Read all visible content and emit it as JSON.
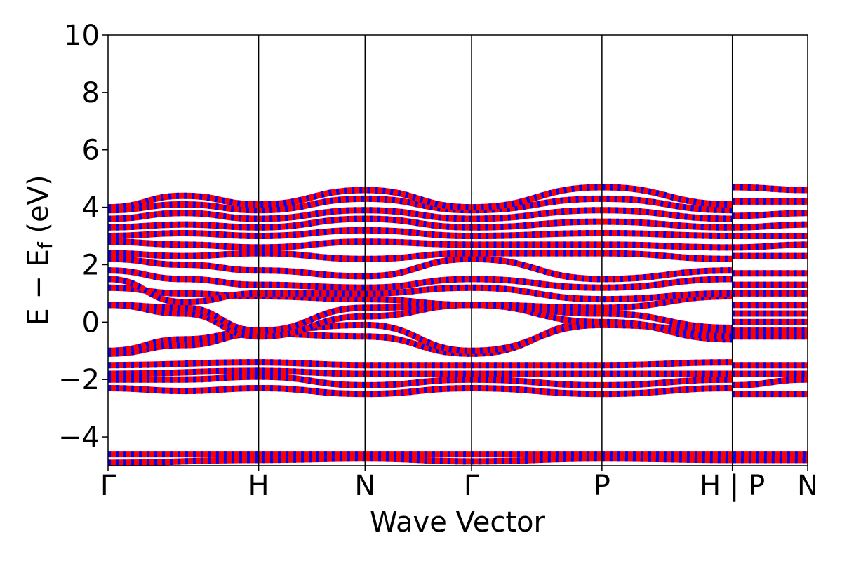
{
  "chart_data": {
    "type": "line",
    "title": "",
    "xlabel": "Wave Vector",
    "ylabel_main": "E − E",
    "ylabel_sub": "f",
    "ylabel_unit": " (eV)",
    "ylim": [
      -5,
      10
    ],
    "yticks": [
      -4,
      -2,
      0,
      2,
      4,
      6,
      8,
      10
    ],
    "ytick_labels": [
      "−4",
      "−2",
      "0",
      "2",
      "4",
      "6",
      "8",
      "10"
    ],
    "kpoints": [
      {
        "label": "Γ",
        "x": 0.0
      },
      {
        "label": "H",
        "x": 1.0
      },
      {
        "label": "N",
        "x": 1.707
      },
      {
        "label": "Γ",
        "x": 2.414
      },
      {
        "label": "P",
        "x": 3.28
      },
      {
        "label": "H | P",
        "x": 4.146
      },
      {
        "label": "N",
        "x": 4.646
      }
    ],
    "xlim": [
      0.0,
      4.646
    ],
    "grid": false,
    "series_colors": {
      "spin_up": "#ff0000",
      "spin_down": "#0000ff"
    },
    "series": [
      {
        "values": [
          [
            0,
            -4.9
          ],
          [
            1.0,
            -4.8
          ],
          [
            1.707,
            -4.75
          ],
          [
            2.414,
            -4.85
          ],
          [
            3.28,
            -4.75
          ],
          [
            4.146,
            -4.8
          ],
          [
            4.646,
            -4.8
          ]
        ]
      },
      {
        "values": [
          [
            0,
            -4.6
          ],
          [
            1.0,
            -4.6
          ],
          [
            1.707,
            -4.6
          ],
          [
            2.414,
            -4.6
          ],
          [
            3.28,
            -4.6
          ],
          [
            4.146,
            -4.6
          ],
          [
            4.646,
            -4.6
          ]
        ]
      },
      {
        "values": [
          [
            0,
            -2.3
          ],
          [
            0.5,
            -2.4
          ],
          [
            1.0,
            -2.3
          ],
          [
            1.707,
            -2.5
          ],
          [
            2.414,
            -2.3
          ],
          [
            3.28,
            -2.5
          ],
          [
            4.146,
            -2.3
          ],
          [
            4.146,
            -2.5
          ],
          [
            4.646,
            -2.5
          ]
        ]
      },
      {
        "values": [
          [
            0,
            -2.0
          ],
          [
            0.5,
            -2.0
          ],
          [
            1.0,
            -1.9
          ],
          [
            1.707,
            -2.2
          ],
          [
            2.414,
            -2.0
          ],
          [
            3.28,
            -2.2
          ],
          [
            4.146,
            -2.0
          ],
          [
            4.146,
            -2.2
          ],
          [
            4.646,
            -2.0
          ]
        ]
      },
      {
        "values": [
          [
            0,
            -1.8
          ],
          [
            1.0,
            -1.7
          ],
          [
            1.707,
            -1.8
          ],
          [
            2.414,
            -1.8
          ],
          [
            3.28,
            -1.8
          ],
          [
            4.146,
            -1.8
          ],
          [
            4.146,
            -1.8
          ],
          [
            4.646,
            -1.8
          ]
        ]
      },
      {
        "values": [
          [
            0,
            -1.5
          ],
          [
            1.0,
            -1.4
          ],
          [
            1.707,
            -1.5
          ],
          [
            2.414,
            -1.5
          ],
          [
            3.28,
            -1.5
          ],
          [
            4.146,
            -1.4
          ],
          [
            4.146,
            -1.5
          ],
          [
            4.646,
            -1.5
          ]
        ]
      },
      {
        "values": [
          [
            0,
            -1.1
          ],
          [
            0.5,
            -0.8
          ],
          [
            1.0,
            -0.4
          ],
          [
            1.707,
            -0.5
          ],
          [
            2.414,
            -1.1
          ],
          [
            3.28,
            0.0
          ],
          [
            4.146,
            -0.6
          ],
          [
            4.146,
            -0.5
          ],
          [
            4.646,
            -0.5
          ]
        ]
      },
      {
        "values": [
          [
            0,
            -1.0
          ],
          [
            0.5,
            -0.6
          ],
          [
            1.0,
            -0.3
          ],
          [
            1.707,
            -0.1
          ],
          [
            2.414,
            -1.0
          ],
          [
            3.28,
            -0.1
          ],
          [
            4.146,
            -0.3
          ],
          [
            4.146,
            -0.3
          ],
          [
            4.646,
            -0.3
          ]
        ]
      },
      {
        "values": [
          [
            0,
            0.6
          ],
          [
            0.5,
            0.3
          ],
          [
            1.0,
            -0.5
          ],
          [
            1.707,
            0.2
          ],
          [
            2.414,
            0.6
          ],
          [
            3.28,
            0.0
          ],
          [
            4.146,
            -0.5
          ],
          [
            4.146,
            0.0
          ],
          [
            4.646,
            0.0
          ]
        ]
      },
      {
        "values": [
          [
            0,
            0.6
          ],
          [
            0.5,
            0.5
          ],
          [
            1.0,
            -0.3
          ],
          [
            1.707,
            0.5
          ],
          [
            2.414,
            0.6
          ],
          [
            3.28,
            0.3
          ],
          [
            4.146,
            -0.2
          ],
          [
            4.146,
            0.3
          ],
          [
            4.646,
            0.3
          ]
        ]
      },
      {
        "values": [
          [
            0,
            1.2
          ],
          [
            0.5,
            1.0
          ],
          [
            1.0,
            0.9
          ],
          [
            1.707,
            0.8
          ],
          [
            2.414,
            0.6
          ],
          [
            3.28,
            0.5
          ],
          [
            4.146,
            0.9
          ],
          [
            4.146,
            0.6
          ],
          [
            4.646,
            0.6
          ]
        ]
      },
      {
        "values": [
          [
            0,
            1.5
          ],
          [
            0.5,
            0.7
          ],
          [
            1.0,
            1.0
          ],
          [
            1.707,
            1.0
          ],
          [
            2.414,
            1.2
          ],
          [
            3.28,
            0.8
          ],
          [
            4.146,
            1.0
          ],
          [
            4.146,
            1.0
          ],
          [
            4.646,
            1.0
          ]
        ]
      },
      {
        "values": [
          [
            0,
            1.8
          ],
          [
            0.5,
            1.5
          ],
          [
            1.0,
            1.3
          ],
          [
            1.707,
            1.2
          ],
          [
            2.414,
            1.5
          ],
          [
            3.28,
            1.2
          ],
          [
            4.146,
            1.5
          ],
          [
            4.146,
            1.3
          ],
          [
            4.646,
            1.3
          ]
        ]
      },
      {
        "values": [
          [
            0,
            2.2
          ],
          [
            0.5,
            2.0
          ],
          [
            1.0,
            1.8
          ],
          [
            1.707,
            1.6
          ],
          [
            2.414,
            2.2
          ],
          [
            3.28,
            1.5
          ],
          [
            4.146,
            1.8
          ],
          [
            4.146,
            1.7
          ],
          [
            4.646,
            1.7
          ]
        ]
      },
      {
        "values": [
          [
            0,
            2.4
          ],
          [
            0.5,
            2.3
          ],
          [
            1.0,
            2.4
          ],
          [
            1.707,
            2.2
          ],
          [
            2.414,
            2.4
          ],
          [
            3.28,
            2.4
          ],
          [
            4.146,
            2.2
          ],
          [
            4.146,
            2.3
          ],
          [
            4.646,
            2.3
          ]
        ]
      },
      {
        "values": [
          [
            0,
            2.8
          ],
          [
            0.5,
            2.7
          ],
          [
            1.0,
            2.6
          ],
          [
            1.707,
            2.8
          ],
          [
            2.414,
            2.7
          ],
          [
            3.28,
            2.7
          ],
          [
            4.146,
            2.6
          ],
          [
            4.146,
            2.6
          ],
          [
            4.646,
            2.7
          ]
        ]
      },
      {
        "values": [
          [
            0,
            3.0
          ],
          [
            0.5,
            3.1
          ],
          [
            1.0,
            3.0
          ],
          [
            1.707,
            3.2
          ],
          [
            2.414,
            3.0
          ],
          [
            3.28,
            3.1
          ],
          [
            4.146,
            3.0
          ],
          [
            4.146,
            3.0
          ],
          [
            4.646,
            3.0
          ]
        ]
      },
      {
        "values": [
          [
            0,
            3.3
          ],
          [
            0.5,
            3.4
          ],
          [
            1.0,
            3.3
          ],
          [
            1.707,
            3.6
          ],
          [
            2.414,
            3.3
          ],
          [
            3.28,
            3.5
          ],
          [
            4.146,
            3.3
          ],
          [
            4.146,
            3.3
          ],
          [
            4.646,
            3.4
          ]
        ]
      },
      {
        "values": [
          [
            0,
            3.6
          ],
          [
            0.5,
            3.8
          ],
          [
            1.0,
            3.6
          ],
          [
            1.707,
            3.9
          ],
          [
            2.414,
            3.6
          ],
          [
            3.28,
            3.9
          ],
          [
            4.146,
            3.6
          ],
          [
            4.146,
            3.7
          ],
          [
            4.646,
            3.8
          ]
        ]
      },
      {
        "values": [
          [
            0,
            3.9
          ],
          [
            0.5,
            4.1
          ],
          [
            1.0,
            3.9
          ],
          [
            1.707,
            4.3
          ],
          [
            2.414,
            3.9
          ],
          [
            3.28,
            4.3
          ],
          [
            4.146,
            3.9
          ],
          [
            4.146,
            4.2
          ],
          [
            4.646,
            4.2
          ]
        ]
      },
      {
        "values": [
          [
            0,
            4.0
          ],
          [
            0.5,
            4.4
          ],
          [
            1.0,
            4.1
          ],
          [
            1.707,
            4.6
          ],
          [
            2.414,
            4.0
          ],
          [
            3.28,
            4.7
          ],
          [
            4.146,
            4.1
          ],
          [
            4.146,
            4.7
          ],
          [
            4.646,
            4.6
          ]
        ]
      }
    ]
  }
}
